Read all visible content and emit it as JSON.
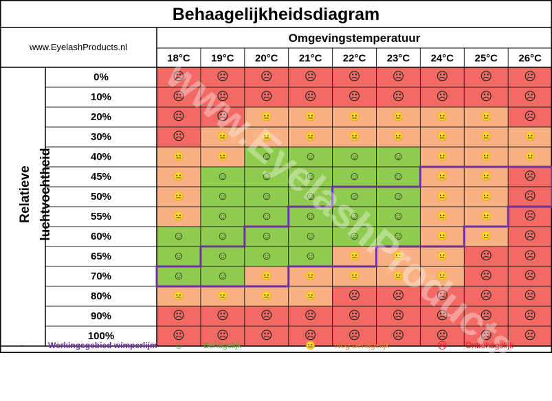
{
  "title": "Behaagelijkheidsdiagram",
  "website": "www.EyelashProducts.nl",
  "watermark": "www.EyelashProducts.nl",
  "colors": {
    "bad": "#f36a65",
    "ok": "#f7b183",
    "good": "#8fcb4f",
    "border": "#7030a0",
    "label_purple": "#7030a0",
    "label_green": "#5aa837",
    "label_orange": "#e57f34",
    "label_red": "#e8141c"
  },
  "faces": {
    "good": "☺",
    "ok": "😐",
    "bad": "☹"
  },
  "legend": {
    "dash": "-",
    "range": "Werkingsgebied wimperlijm",
    "good": "Behagelijk",
    "ok": "Nog behagelijk",
    "bad": "Onbehagelijk"
  },
  "chart_data": {
    "type": "heatmap",
    "title": "Behaagelijkheidsdiagram",
    "xlabel": "Omgevingstemperatuur",
    "ylabel": "Relatieve luchtvochtheid",
    "x": [
      "18°C",
      "19°C",
      "20°C",
      "21°C",
      "22°C",
      "23°C",
      "24°C",
      "25°C",
      "26°C"
    ],
    "y": [
      "0%",
      "10%",
      "20%",
      "30%",
      "40%",
      "45%",
      "50%",
      "55%",
      "60%",
      "65%",
      "70%",
      "80%",
      "90%",
      "100%"
    ],
    "categories": {
      "good": "Behagelijk",
      "ok": "Nog behagelijk",
      "bad": "Onbehagelijk"
    },
    "values": [
      [
        "bad",
        "bad",
        "bad",
        "bad",
        "bad",
        "bad",
        "bad",
        "bad",
        "bad"
      ],
      [
        "bad",
        "bad",
        "bad",
        "bad",
        "bad",
        "bad",
        "bad",
        "bad",
        "bad"
      ],
      [
        "bad",
        "bad",
        "ok",
        "ok",
        "ok",
        "ok",
        "ok",
        "ok",
        "bad"
      ],
      [
        "bad",
        "ok",
        "ok",
        "ok",
        "ok",
        "ok",
        "ok",
        "ok",
        "ok"
      ],
      [
        "ok",
        "ok",
        "good",
        "good",
        "good",
        "good",
        "ok",
        "ok",
        "ok"
      ],
      [
        "ok",
        "good",
        "good",
        "good",
        "good",
        "good",
        "ok",
        "ok",
        "bad"
      ],
      [
        "ok",
        "good",
        "good",
        "good",
        "good",
        "good",
        "ok",
        "ok",
        "bad"
      ],
      [
        "ok",
        "good",
        "good",
        "good",
        "good",
        "good",
        "ok",
        "ok",
        "bad"
      ],
      [
        "good",
        "good",
        "good",
        "good",
        "good",
        "good",
        "ok",
        "ok",
        "bad"
      ],
      [
        "good",
        "good",
        "good",
        "good",
        "ok",
        "ok",
        "ok",
        "bad",
        "bad"
      ],
      [
        "good",
        "good",
        "ok",
        "ok",
        "ok",
        "ok",
        "ok",
        "bad",
        "bad"
      ],
      [
        "ok",
        "ok",
        "ok",
        "ok",
        "bad",
        "bad",
        "bad",
        "bad",
        "bad"
      ],
      [
        "bad",
        "bad",
        "bad",
        "bad",
        "bad",
        "bad",
        "bad",
        "bad",
        "bad"
      ],
      [
        "bad",
        "bad",
        "bad",
        "bad",
        "bad",
        "bad",
        "bad",
        "bad",
        "bad"
      ]
    ],
    "wimperlijm_range": {
      "name": "Werkingsgebied wimperlijm",
      "rows_per_temperature": [
        [
          "70%",
          "70%"
        ],
        [
          "65%",
          "70%"
        ],
        [
          "60%",
          "70%"
        ],
        [
          "55%",
          "65%"
        ],
        [
          "50%",
          "65%"
        ],
        [
          "50%",
          "60%"
        ],
        [
          "45%",
          "60%"
        ],
        [
          "45%",
          "55%"
        ],
        [
          "45%",
          "50%"
        ]
      ]
    }
  }
}
